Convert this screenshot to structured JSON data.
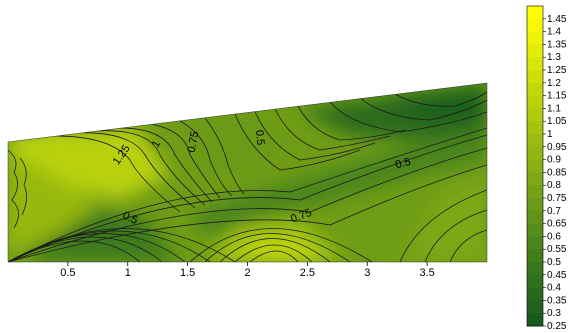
{
  "chart_data": {
    "type": "heatmap",
    "subtype": "filled-contour",
    "title": "",
    "xlabel": "",
    "ylabel": "",
    "x_ticks": [
      0.5,
      1,
      1.5,
      2,
      2.5,
      3,
      3.5
    ],
    "x_tick_labels": [
      "0.5",
      "1",
      "1.5",
      "2",
      "2.5",
      "3",
      "3.5"
    ],
    "xlim": [
      0,
      4
    ],
    "domain": {
      "shape": "trapezoid",
      "left_edge_top": 0.56,
      "right_edge_top": 0.82,
      "bottom": 0
    },
    "colorbar": {
      "levels": [
        1.45,
        1.4,
        1.35,
        1.3,
        1.25,
        1.2,
        1.15,
        1.1,
        1.05,
        1,
        0.95,
        0.9,
        0.85,
        0.8,
        0.75,
        0.7,
        0.65,
        0.6,
        0.55,
        0.5,
        0.45,
        0.4,
        0.35,
        0.3,
        0.25
      ],
      "labels": [
        "1.45",
        "1.4",
        "1.35",
        "1.3",
        "1.25",
        "1.2",
        "1.15",
        "1.1",
        "1.05",
        "1",
        "0.95",
        "0.9",
        "0.85",
        "0.8",
        "0.75",
        "0.7",
        "0.65",
        "0.6",
        "0.55",
        "0.5",
        "0.45",
        "0.4",
        "0.35",
        "0.3",
        "0.25"
      ],
      "colors": [
        "#ffff00",
        "#f7f900",
        "#eef300",
        "#e4ec02",
        "#d9e504",
        "#cfdf06",
        "#c4d808",
        "#bad10a",
        "#b0ca0c",
        "#a6c30e",
        "#9cbd10",
        "#92b612",
        "#88af14",
        "#7ea815",
        "#74a116",
        "#6a9a17",
        "#609318",
        "#568c19",
        "#4c851a",
        "#437e1b",
        "#3a771c",
        "#31701c",
        "#28691d",
        "#20621e",
        "#185b1e"
      ],
      "placement": "right"
    },
    "contour_labels": [
      {
        "text": "1.25",
        "x": 0.95,
        "y": 0.49,
        "rotation": -55
      },
      {
        "text": "1",
        "x": 1.24,
        "y": 0.54,
        "rotation": -60
      },
      {
        "text": "0.75",
        "x": 1.55,
        "y": 0.55,
        "rotation": -80
      },
      {
        "text": "0.5",
        "x": 2.1,
        "y": 0.57,
        "rotation": 85
      },
      {
        "text": "0.5",
        "x": 3.3,
        "y": 0.45,
        "rotation": -15
      },
      {
        "text": "0.75",
        "x": 2.45,
        "y": 0.21,
        "rotation": -20
      },
      {
        "text": "0.5",
        "x": 1.02,
        "y": 0.2,
        "rotation": 25
      }
    ]
  }
}
